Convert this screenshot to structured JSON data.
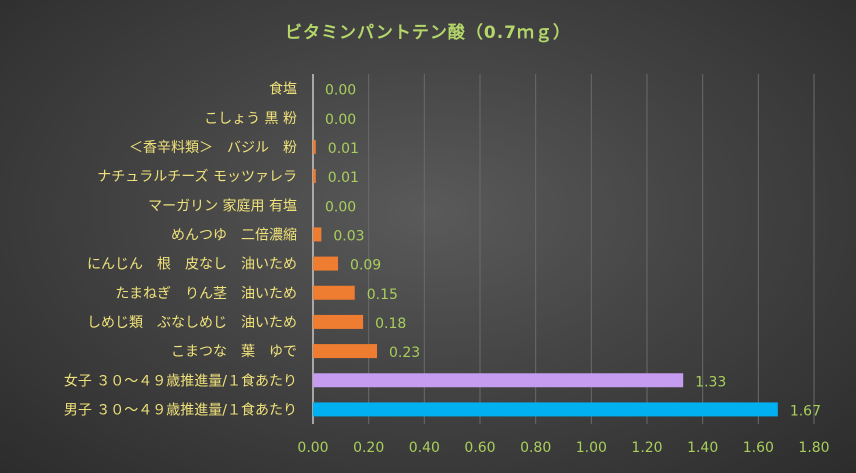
{
  "chart_data": {
    "type": "bar",
    "orientation": "horizontal",
    "title": "ビタミンパントテン酸（0.7ｍｇ）",
    "categories": [
      "食塩",
      "こしょう 黒 粉",
      "＜香辛料類＞　バジル　粉",
      "ナチュラルチーズ モッツァレラ",
      "マーガリン 家庭用 有塩",
      "めんつゆ　二倍濃縮",
      "にんじん　根　皮なし　油いため",
      "たまねぎ　りん茎　油いため",
      "しめじ類　ぶなしめじ　油いため",
      "こまつな　葉　ゆで",
      "女子 ３０～４９歳推進量/１食あたり",
      "男子 ３０～４９歳推進量/１食あたり"
    ],
    "values": [
      0.0,
      0.0,
      0.01,
      0.01,
      0.0,
      0.03,
      0.09,
      0.15,
      0.18,
      0.23,
      1.33,
      1.67
    ],
    "value_labels": [
      "0.00",
      "0.00",
      "0.01",
      "0.01",
      "0.00",
      "0.03",
      "0.09",
      "0.15",
      "0.18",
      "0.23",
      "1.33",
      "1.67"
    ],
    "bar_colors": [
      "#ee7d31",
      "#ee7d31",
      "#ee7d31",
      "#ee7d31",
      "#ee7d31",
      "#ee7d31",
      "#ee7d31",
      "#ee7d31",
      "#ee7d31",
      "#ee7d31",
      "#c59cf0",
      "#00b0f0"
    ],
    "xlim": [
      0,
      1.8
    ],
    "xticks": [
      "0.00",
      "0.20",
      "0.40",
      "0.60",
      "0.80",
      "1.00",
      "1.20",
      "1.40",
      "1.60",
      "1.80"
    ],
    "grid": true,
    "legend": "none",
    "colors": {
      "title": "#b4d66a",
      "category_text": "#f0e27a",
      "value_text": "#a9cf5c",
      "axis": "#c8c8c8"
    }
  }
}
